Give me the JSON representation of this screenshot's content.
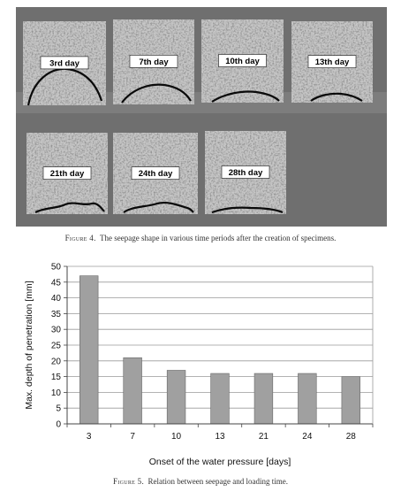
{
  "figure4": {
    "specimens": [
      {
        "label": "3rd day"
      },
      {
        "label": "7th day"
      },
      {
        "label": "10th day"
      },
      {
        "label": "13th day"
      },
      {
        "label": "21th day"
      },
      {
        "label": "24th day"
      },
      {
        "label": "28th day"
      }
    ],
    "caption_prefix": "Figure 4.",
    "caption_text": "The seepage shape in various time periods after the creation of specimens."
  },
  "figure5": {
    "caption_prefix": "Figure 5.",
    "caption_text": "Relation between seepage and loading time."
  },
  "chart_data": {
    "type": "bar",
    "categories": [
      "3",
      "7",
      "10",
      "13",
      "21",
      "24",
      "28"
    ],
    "values": [
      47,
      21,
      17,
      16,
      16,
      16,
      15
    ],
    "xlabel": "Onset of the water pressure [days]",
    "ylabel": "Max. depth of penetration [mm]",
    "ylim": [
      0,
      50
    ],
    "yticks": [
      0,
      5,
      10,
      15,
      20,
      25,
      30,
      35,
      40,
      45,
      50
    ],
    "grid": true,
    "bar_color": "#a0a0a0"
  }
}
